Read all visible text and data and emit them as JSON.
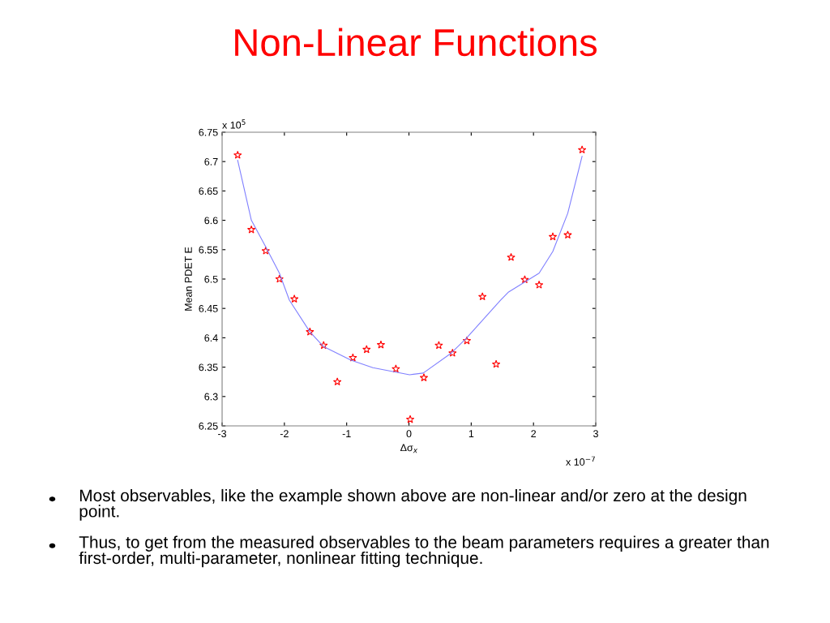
{
  "chart_data": {
    "type": "scatter",
    "title": "Non-Linear Functions",
    "xlabel": "Δσ$_{x}$",
    "ylabel": "Mean PDET E",
    "xlim": [
      -3,
      3
    ],
    "xticks": [
      -3,
      -2,
      -1,
      0,
      1,
      2,
      3
    ],
    "ylim": [
      6.25,
      6.75
    ],
    "yticks": [
      6.25,
      6.3,
      6.35,
      6.4,
      6.45,
      6.5,
      6.55,
      6.6,
      6.65,
      6.7,
      6.75
    ],
    "grid": false,
    "series": [
      {
        "color": "#ff0000",
        "marker": "star",
        "x": [
          -2.75,
          -2.53,
          -2.3,
          -2.08,
          -1.84,
          -1.59,
          -1.37,
          -1.15,
          -0.9,
          -0.68,
          -0.45,
          -0.21,
          0.02,
          0.24,
          0.48,
          0.7,
          0.93,
          1.18,
          1.4,
          1.64,
          1.86,
          2.09,
          2.31,
          2.55,
          2.78
        ],
        "values": [
          6.711,
          6.584,
          6.548,
          6.5,
          6.466,
          6.41,
          6.387,
          6.325,
          6.366,
          6.38,
          6.388,
          6.347,
          6.261,
          6.332,
          6.387,
          6.374,
          6.395,
          6.47,
          6.355,
          6.537,
          6.499,
          6.49,
          6.572,
          6.575,
          6.72
        ]
      },
      {
        "type": "line",
        "color": "#8080ff",
        "marker": "none",
        "line_style": "solid",
        "x": [
          -2.75,
          -2.53,
          -2.3,
          -2.08,
          -1.92,
          -1.59,
          -1.37,
          -0.93,
          -0.58,
          0.01,
          0.23,
          0.68,
          0.92,
          1.47,
          1.6,
          2.09,
          2.31,
          2.55,
          2.78
        ],
        "values": [
          6.702,
          6.6,
          6.555,
          6.51,
          6.464,
          6.41,
          6.385,
          6.362,
          6.349,
          6.337,
          6.34,
          6.374,
          6.399,
          6.464,
          6.478,
          6.51,
          6.547,
          6.612,
          6.709
        ]
      }
    ],
    "annotations": [
      "x 10$^{5}$",
      "x 10$^{−7}$",
      "Most observables, like the example shown above are non-linear and/or zero at the design point.",
      "Thus, to get from the measured observables to the beam parameters requires a greater than first-order, multi-parameter, nonlinear fitting technique."
    ]
  }
}
